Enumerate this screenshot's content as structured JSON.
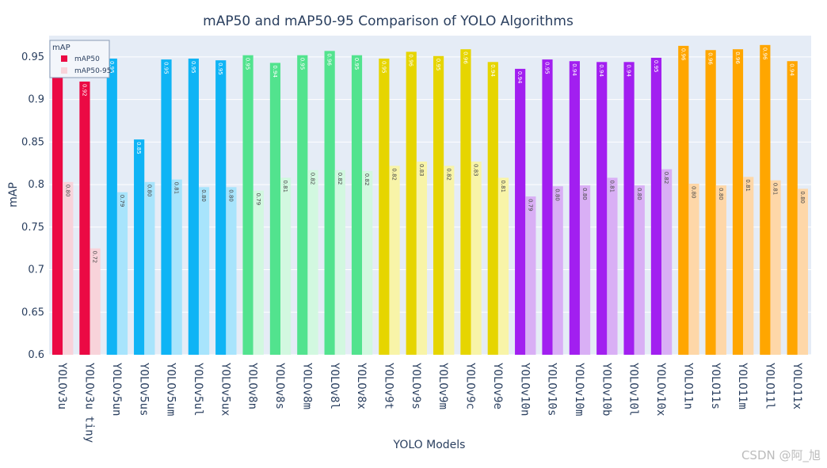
{
  "chart_data": {
    "type": "bar",
    "title": "mAP50 and mAP50-95 Comparison of YOLO Algorithms",
    "xlabel": "YOLO Models",
    "ylabel": "mAP",
    "ylim": [
      0.6,
      0.975
    ],
    "yticks": [
      0.6,
      0.65,
      0.7,
      0.75,
      0.8,
      0.85,
      0.9,
      0.95
    ],
    "ytick_labels": [
      "0.6",
      "0.65",
      "0.7",
      "0.75",
      "0.8",
      "0.85",
      "0.9",
      "0.95"
    ],
    "grid": true,
    "legend": {
      "title": "mAP",
      "position": "top-left",
      "entries": [
        "mAP50",
        "mAP50-95"
      ]
    },
    "categories": [
      "YOLOv3u",
      "YOLOv3u tiny",
      "YOLOv5un",
      "YOLOv5us",
      "YOLOv5um",
      "YOLOv5ul",
      "YOLOv5ux",
      "YOLOv8n",
      "YOLOv8s",
      "YOLOv8m",
      "YOLOv8l",
      "YOLOv8x",
      "YOLOv9t",
      "YOLOv9s",
      "YOLOv9m",
      "YOLOv9c",
      "YOLOv9e",
      "YOLOv10n",
      "YOLOv10s",
      "YOLOv10m",
      "YOLOv10b",
      "YOLOv10l",
      "YOLOv10x",
      "YOLO11n",
      "YOLO11s",
      "YOLO11m",
      "YOLO11l",
      "YOLO11x"
    ],
    "series": [
      {
        "name": "mAP50",
        "values": [
          0.943,
          0.921,
          0.948,
          0.853,
          0.947,
          0.948,
          0.946,
          0.952,
          0.943,
          0.952,
          0.957,
          0.952,
          0.948,
          0.956,
          0.951,
          0.959,
          0.944,
          0.936,
          0.947,
          0.945,
          0.944,
          0.944,
          0.949,
          0.963,
          0.958,
          0.959,
          0.964,
          0.945
        ],
        "labels": [
          "0.94",
          "0.92",
          "0.95",
          "0.85",
          "0.95",
          "0.95",
          "0.95",
          "0.95",
          "0.94",
          "0.95",
          "0.96",
          "0.95",
          "0.95",
          "0.96",
          "0.95",
          "0.96",
          "0.94",
          "0.94",
          "0.95",
          "0.94",
          "0.94",
          "0.94",
          "0.95",
          "0.96",
          "0.96",
          "0.96",
          "0.96",
          "0.94"
        ]
      },
      {
        "name": "mAP50-95",
        "values": [
          0.803,
          0.725,
          0.791,
          0.803,
          0.806,
          0.797,
          0.797,
          0.793,
          0.808,
          0.817,
          0.817,
          0.816,
          0.822,
          0.827,
          0.822,
          0.827,
          0.808,
          0.786,
          0.798,
          0.799,
          0.808,
          0.799,
          0.818,
          0.801,
          0.799,
          0.809,
          0.805,
          0.795
        ],
        "labels": [
          "0.80",
          "0.72",
          "0.79",
          "0.80",
          "0.81",
          "0.80",
          "0.80",
          "0.79",
          "0.81",
          "0.82",
          "0.82",
          "0.82",
          "0.82",
          "0.83",
          "0.82",
          "0.83",
          "0.81",
          "0.79",
          "0.80",
          "0.80",
          "0.81",
          "0.80",
          "0.82",
          "0.80",
          "0.80",
          "0.81",
          "0.81",
          "0.80"
        ]
      }
    ],
    "group_colors": [
      {
        "models": "YOLOv3u",
        "mAP50": "#eb0a44",
        "mAP50-95": "#f8d3da"
      },
      {
        "models": "YOLOv5u",
        "mAP50": "#0fb4f5",
        "mAP50-95": "#a8e4fc"
      },
      {
        "models": "YOLOv8",
        "mAP50": "#52e38e",
        "mAP50-95": "#d2f8e0"
      },
      {
        "models": "YOLOv9",
        "mAP50": "#e6d500",
        "mAP50-95": "#f8f4a8"
      },
      {
        "models": "YOLOv10",
        "mAP50": "#a21ff0",
        "mAP50-95": "#d9aff5"
      },
      {
        "models": "YOLO11",
        "mAP50": "#ffa600",
        "mAP50-95": "#fed7a8"
      }
    ],
    "bar_group_index": [
      0,
      0,
      1,
      1,
      1,
      1,
      1,
      2,
      2,
      2,
      2,
      2,
      3,
      3,
      3,
      3,
      3,
      4,
      4,
      4,
      4,
      4,
      4,
      5,
      5,
      5,
      5,
      5
    ],
    "colors": {
      "plot_bg": "#e5ecf6",
      "grid": "#ffffff",
      "text": "#2a3f5f"
    }
  },
  "watermark": "CSDN @阿_旭"
}
